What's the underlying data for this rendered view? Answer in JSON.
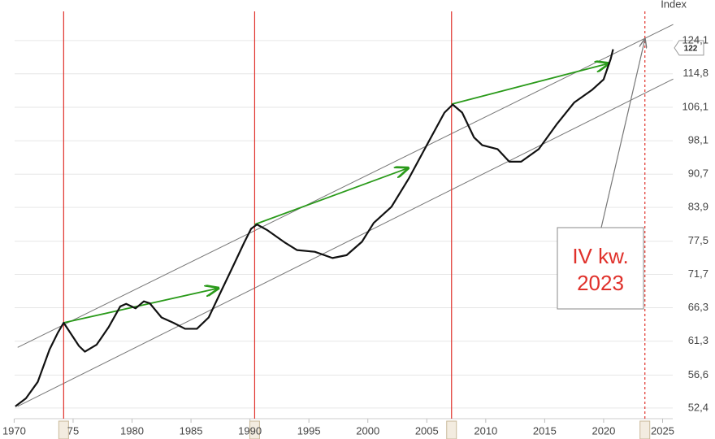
{
  "chart_data": {
    "type": "line",
    "y_axis_label": "Index",
    "log_scale": true,
    "grid": true,
    "xlim": [
      1968.8,
      2026.0
    ],
    "xticks": [
      1970,
      {
        "value": 1975,
        "label": "75"
      },
      1980,
      1985,
      1990,
      1995,
      2000,
      2005,
      2010,
      2015,
      2020,
      2025
    ],
    "ylim": [
      51.1,
      136.5
    ],
    "yticks": [
      {
        "value": 52.4,
        "label": "52,4"
      },
      {
        "value": 56.6,
        "label": "56,6"
      },
      {
        "value": 61.3,
        "label": "61,3"
      },
      {
        "value": 66.3,
        "label": "66,3"
      },
      {
        "value": 71.7,
        "label": "71,7"
      },
      {
        "value": 77.5,
        "label": "77,5"
      },
      {
        "value": 83.9,
        "label": "83,9"
      },
      {
        "value": 90.7,
        "label": "90,7"
      },
      {
        "value": 98.1,
        "label": "98,1"
      },
      {
        "value": 106.1,
        "label": "106,1"
      },
      {
        "value": 114.8,
        "label": "114,8"
      },
      {
        "value": 124.1,
        "label": "124,1"
      }
    ],
    "x": [
      1970.1,
      1971,
      1972,
      1973,
      1973.7,
      1974.2,
      1975.5,
      1976,
      1977,
      1978,
      1979,
      1979.5,
      1980.3,
      1981,
      1981.5,
      1982.5,
      1983.5,
      1984.5,
      1985.5,
      1986.5,
      1987.5,
      1988.5,
      1989.5,
      1990.1,
      1990.6,
      1991.5,
      1993,
      1994,
      1995.5,
      1997,
      1998.2,
      1999.5,
      2000.5,
      2002,
      2003.5,
      2005,
      2006.5,
      2007.2,
      2008,
      2009,
      2009.7,
      2011,
      2012,
      2013,
      2014.5,
      2016,
      2017.5,
      2019,
      2020,
      2020.6,
      2020.8
    ],
    "series": [
      {
        "color": "#111111",
        "values": [
          52.6,
          53.6,
          55.7,
          60.1,
          62.5,
          64.0,
          60.6,
          59.8,
          60.8,
          63.3,
          66.5,
          66.9,
          66.2,
          67.3,
          67.0,
          64.8,
          64.0,
          63.1,
          63.1,
          64.8,
          68.7,
          72.8,
          77.2,
          79.8,
          80.6,
          79.5,
          77.2,
          75.9,
          75.6,
          74.5,
          75.0,
          77.4,
          80.9,
          84.0,
          89.9,
          97.1,
          104.8,
          106.8,
          104.8,
          98.9,
          97.1,
          96.2,
          93.4,
          93.4,
          96.2,
          101.9,
          107.3,
          110.5,
          113.3,
          118.9,
          121.6
        ]
      }
    ],
    "last_value": 122,
    "trend_lines": [
      {
        "color": "#777777",
        "x": [
          1970.3,
          2025.9
        ],
        "values": [
          60.4,
          128.9
        ]
      },
      {
        "color": "#777777",
        "x": [
          1970.3,
          2025.9
        ],
        "values": [
          52.6,
          113.4
        ]
      }
    ],
    "arrows": [
      {
        "color": "#2a9a1a",
        "x": [
          1974.2,
          1987.3
        ],
        "values": [
          64.0,
          69.4
        ]
      },
      {
        "color": "#2a9a1a",
        "x": [
          1990.4,
          2003.4
        ],
        "values": [
          80.6,
          92.0
        ]
      },
      {
        "color": "#2a9a1a",
        "x": [
          2007.1,
          2020.4
        ],
        "values": [
          106.9,
          117.6
        ]
      }
    ],
    "vlines": {
      "color": "#e0312b",
      "x": [
        1974.2,
        1990.4,
        2007.1
      ]
    },
    "dashed_vline": {
      "color": "#e0312b",
      "x": 2023.5
    },
    "annotation": {
      "lines": [
        "IV kw.",
        "2023"
      ],
      "color": "#e0312b",
      "x": 2023.5,
      "y": 124.5
    }
  }
}
